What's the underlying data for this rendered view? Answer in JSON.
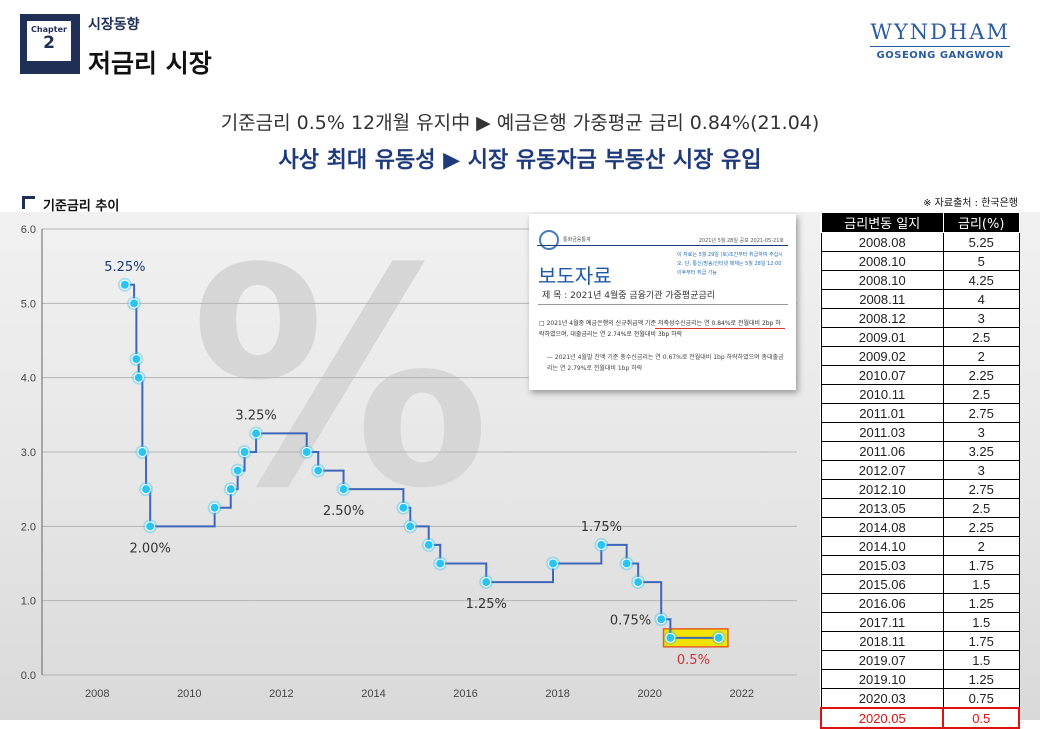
{
  "header": {
    "chapter_word": "Chapter",
    "chapter_number": "2",
    "category": "시장동향",
    "title": "저금리 시장",
    "brand_name": "WYNDHAM",
    "brand_location": "GOSEONG GANGWON"
  },
  "subtitle": {
    "line1": "기준금리 0.5% 12개월 유지中 ▶ 예금은행 가중평균 금리 0.84%(21.04)",
    "line2": "사상 최대 유동성 ▶ 시장 유동자금 부동산 시장 유입"
  },
  "section": {
    "title": "기준금리 추이",
    "source": "※ 자료출처 : 한국은행"
  },
  "press_release": {
    "org": "통화금융통계",
    "date": "2021년  5월  28일  공보 2021-05-21호",
    "note": "이 자료는 5월 29일 (토)조간부터 취급하여 주십시오. 단, 통신/방송/인터넷 매체는 5월 28일 12:00 이후부터 취급 가능",
    "heading": "보도자료",
    "subject": "제 목 : 2021년 4월중 금융기관 가중평균금리",
    "paragraph1": "□ 2021년 4월중 예금은행의 신규취급액 기준 저축성수신금리는 연 0.84%로 전월대비 2bp 하락하였으며, 대출금리는 연 2.74%로 전월대비 3bp 하락",
    "paragraph2": "— 2021년 4월말 잔액 기준 총수신금리는 연 0.67%로 전월대비 1bp 하락하였으며 총대출금리는 연 2.79%로 전월대비 1bp 하락"
  },
  "table": {
    "headers": [
      "금리변동 일지",
      "금리(%)"
    ],
    "rows": [
      [
        "2008.08",
        "5.25"
      ],
      [
        "2008.10",
        "5"
      ],
      [
        "2008.10",
        "4.25"
      ],
      [
        "2008.11",
        "4"
      ],
      [
        "2008.12",
        "3"
      ],
      [
        "2009.01",
        "2.5"
      ],
      [
        "2009.02",
        "2"
      ],
      [
        "2010.07",
        "2.25"
      ],
      [
        "2010.11",
        "2.5"
      ],
      [
        "2011.01",
        "2.75"
      ],
      [
        "2011.03",
        "3"
      ],
      [
        "2011.06",
        "3.25"
      ],
      [
        "2012.07",
        "3"
      ],
      [
        "2012.10",
        "2.75"
      ],
      [
        "2013.05",
        "2.5"
      ],
      [
        "2014.08",
        "2.25"
      ],
      [
        "2014.10",
        "2"
      ],
      [
        "2015.03",
        "1.75"
      ],
      [
        "2015.06",
        "1.5"
      ],
      [
        "2016.06",
        "1.25"
      ],
      [
        "2017.11",
        "1.5"
      ],
      [
        "2018.11",
        "1.75"
      ],
      [
        "2019.07",
        "1.5"
      ],
      [
        "2019.10",
        "1.25"
      ],
      [
        "2020.03",
        "0.75"
      ],
      [
        "2020.05",
        "0.5"
      ]
    ],
    "highlight_row": 25
  },
  "chart_data": {
    "type": "line",
    "title": "",
    "xlabel": "",
    "ylabel": "",
    "xlim": [
      2006.8,
      2023.2
    ],
    "ylim": [
      0.0,
      6.0
    ],
    "x_ticks": [
      2008,
      2010,
      2012,
      2014,
      2016,
      2018,
      2020,
      2022
    ],
    "y_ticks": [
      "0.0",
      "1.0",
      "2.0",
      "3.0",
      "4.0",
      "5.0",
      "6.0"
    ],
    "step": true,
    "grid": true,
    "color": "#3f66b8",
    "marker_color": "#29c4f0",
    "points": [
      {
        "x": 2008.6,
        "y": 5.25
      },
      {
        "x": 2008.8,
        "y": 5.0
      },
      {
        "x": 2008.85,
        "y": 4.25
      },
      {
        "x": 2008.9,
        "y": 4.0
      },
      {
        "x": 2008.98,
        "y": 3.0
      },
      {
        "x": 2009.06,
        "y": 2.5
      },
      {
        "x": 2009.15,
        "y": 2.0
      },
      {
        "x": 2010.55,
        "y": 2.25
      },
      {
        "x": 2010.9,
        "y": 2.5
      },
      {
        "x": 2011.05,
        "y": 2.75
      },
      {
        "x": 2011.2,
        "y": 3.0
      },
      {
        "x": 2011.45,
        "y": 3.25
      },
      {
        "x": 2012.55,
        "y": 3.0
      },
      {
        "x": 2012.8,
        "y": 2.75
      },
      {
        "x": 2013.35,
        "y": 2.5
      },
      {
        "x": 2014.65,
        "y": 2.25
      },
      {
        "x": 2014.8,
        "y": 2.0
      },
      {
        "x": 2015.2,
        "y": 1.75
      },
      {
        "x": 2015.45,
        "y": 1.5
      },
      {
        "x": 2016.45,
        "y": 1.25
      },
      {
        "x": 2017.9,
        "y": 1.5
      },
      {
        "x": 2018.95,
        "y": 1.75
      },
      {
        "x": 2019.5,
        "y": 1.5
      },
      {
        "x": 2019.75,
        "y": 1.25
      },
      {
        "x": 2020.25,
        "y": 0.75
      },
      {
        "x": 2020.45,
        "y": 0.5
      },
      {
        "x": 2021.5,
        "y": 0.5
      }
    ],
    "annotations": [
      {
        "text": "5.25%",
        "x": 2008.6,
        "y": 5.25,
        "pos": "above",
        "color": "#1f3a7a"
      },
      {
        "text": "3.25%",
        "x": 2011.45,
        "y": 3.25,
        "pos": "above",
        "color": "#333333"
      },
      {
        "text": "2.50%",
        "x": 2013.35,
        "y": 2.5,
        "pos": "below",
        "color": "#333333"
      },
      {
        "text": "2.00%",
        "x": 2009.15,
        "y": 2.0,
        "pos": "below",
        "color": "#333333"
      },
      {
        "text": "1.75%",
        "x": 2018.95,
        "y": 1.75,
        "pos": "above",
        "color": "#333333"
      },
      {
        "text": "1.25%",
        "x": 2016.45,
        "y": 1.25,
        "pos": "below",
        "color": "#333333"
      },
      {
        "text": "0.75%",
        "x": 2020.25,
        "y": 0.75,
        "pos": "left",
        "color": "#333333"
      },
      {
        "text": "0.5%",
        "x": 2020.95,
        "y": 0.5,
        "pos": "below",
        "color": "#cc3333"
      }
    ],
    "highlight": {
      "x_from": 2020.3,
      "x_to": 2021.7,
      "y": 0.5,
      "fill": "#f2e200",
      "stroke": "#e2602b"
    }
  }
}
